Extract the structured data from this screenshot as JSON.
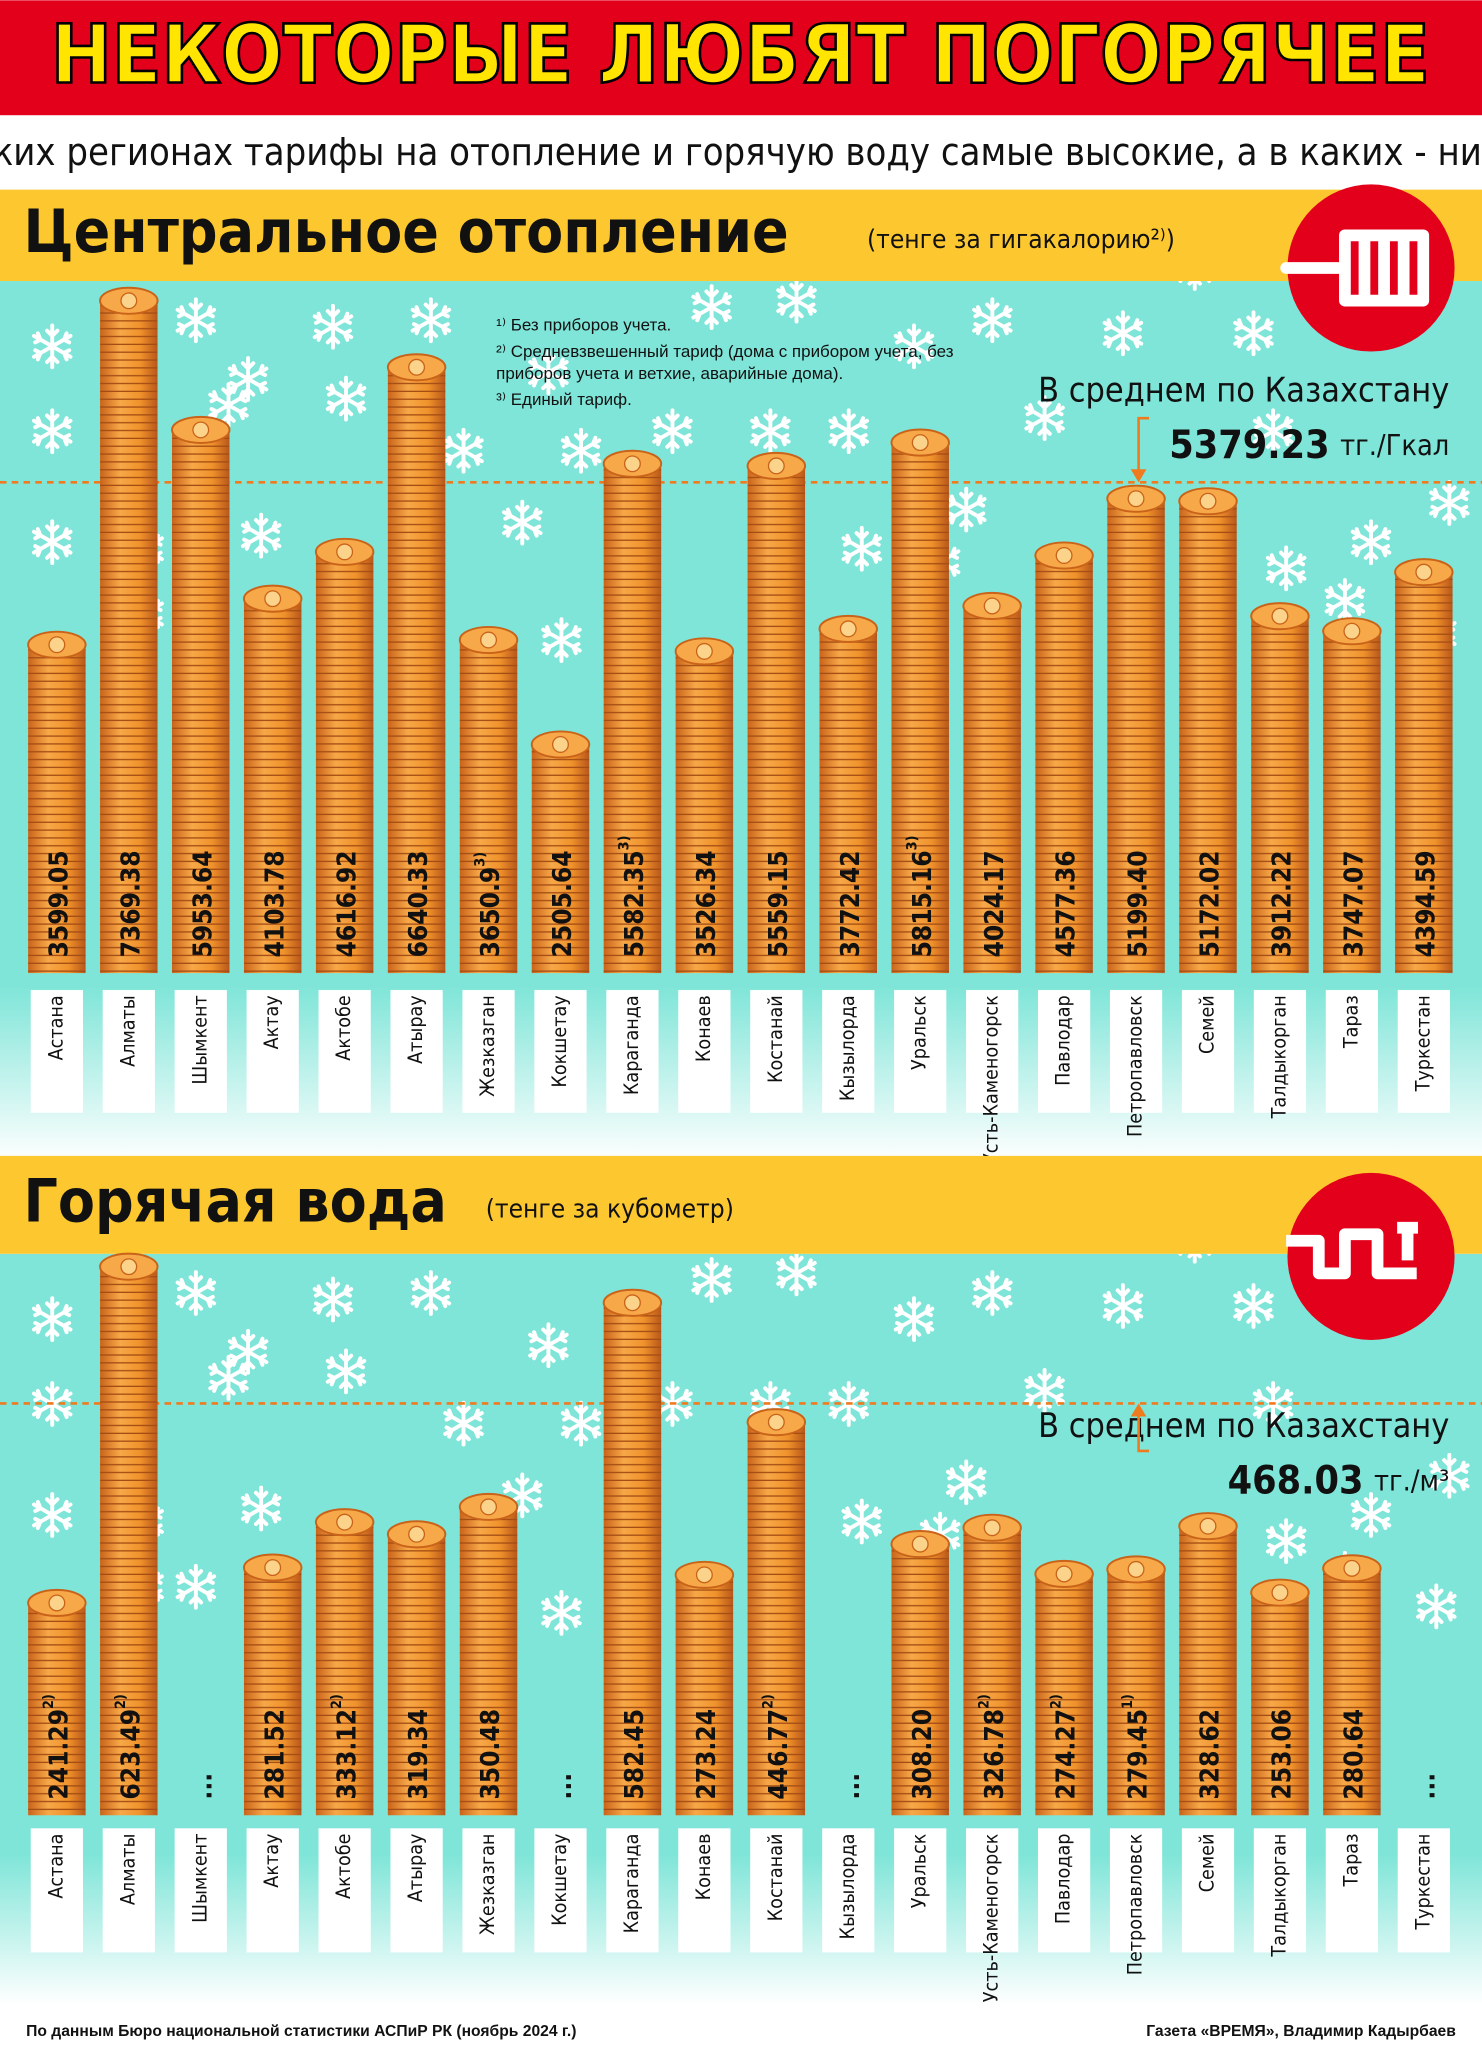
{
  "header": {
    "title": "НЕКОТОРЫЕ ЛЮБЯТ ПОГОРЯЧЕЕ",
    "subtitle": "В каких регионах тарифы на отопление и горячую воду самые высокие, а в каких - низкие"
  },
  "chart_data": [
    {
      "type": "bar",
      "title": "Центральное отопление",
      "unit": "(тенге за гигакалорию²⁾)",
      "color": "#f0922b",
      "notes": [
        "¹⁾ Без приборов учета.",
        "²⁾ Средневзвешенный тариф (дома с прибором учета, без приборов учета и ветхие, аварийные дома).",
        "³⁾ Единый тариф."
      ],
      "categories": [
        "Астана",
        "Алматы",
        "Шымкент",
        "Актау",
        "Актобе",
        "Атырау",
        "Жезказган",
        "Кокшетау",
        "Караганда",
        "Конаев",
        "Костанай",
        "Кызылорда",
        "Уральск",
        "Усть-Каменогорск",
        "Павлодар",
        "Петропавловск",
        "Семей",
        "Талдыкорган",
        "Тараз",
        "Туркестан"
      ],
      "values": [
        3599.05,
        7369.38,
        5953.64,
        4103.78,
        4616.92,
        6640.33,
        3650.9,
        2505.64,
        5582.35,
        3526.34,
        5559.15,
        3772.42,
        5815.16,
        4024.17,
        4577.36,
        5199.4,
        5172.02,
        3912.22,
        3747.07,
        4394.59
      ],
      "value_labels": [
        "3599.05",
        "7369.38",
        "5953.64",
        "4103.78",
        "4616.92",
        "6640.33",
        "3650.9",
        "2505.64",
        "5582.35",
        "3526.34",
        "5559.15",
        "3772.42",
        "5815.16",
        "4024.17",
        "4577.36",
        "5199.40",
        "5172.02",
        "3912.22",
        "3747.07",
        "4394.59"
      ],
      "footnotes": [
        null,
        null,
        null,
        null,
        null,
        null,
        "3)",
        null,
        "3)",
        null,
        null,
        null,
        "3)",
        null,
        null,
        null,
        null,
        null,
        null,
        null
      ],
      "ylim": [
        0,
        7600
      ],
      "average": {
        "label": "В среднем по Казахстану",
        "value": 5379.23,
        "unit": "тг./Гкал"
      }
    },
    {
      "type": "bar",
      "title": "Горячая вода",
      "unit": "(тенге за кубометр)",
      "color": "#f0922b",
      "categories": [
        "Астана",
        "Алматы",
        "Шымкент",
        "Актау",
        "Актобе",
        "Атырау",
        "Жезказган",
        "Кокшетау",
        "Караганда",
        "Конаев",
        "Костанай",
        "Кызылорда",
        "Уральск",
        "Усть-Каменогорск",
        "Павлодар",
        "Петропавловск",
        "Семей",
        "Талдыкорган",
        "Тараз",
        "Туркестан"
      ],
      "values": [
        241.29,
        623.49,
        null,
        281.52,
        333.12,
        319.34,
        350.48,
        null,
        582.45,
        273.24,
        446.77,
        null,
        308.2,
        326.78,
        274.27,
        279.45,
        328.62,
        253.06,
        280.64,
        null
      ],
      "value_labels": [
        "241.29",
        "623.49",
        "...",
        "281.52",
        "333.12",
        "319.34",
        "350.48",
        "...",
        "582.45",
        "273.24",
        "446.77",
        "...",
        "308.20",
        "326.78",
        "274.27",
        "279.45",
        "328.62",
        "253.06",
        "280.64",
        "..."
      ],
      "footnotes": [
        "2)",
        "2)",
        null,
        null,
        "2)",
        null,
        null,
        null,
        null,
        null,
        "2)",
        null,
        null,
        "2)",
        "2)",
        "1)",
        null,
        null,
        null,
        null
      ],
      "ylim": [
        0,
        650
      ],
      "average": {
        "label": "В среднем по Казахстану",
        "value": 468.03,
        "unit": "тг./м³"
      }
    }
  ],
  "footer": {
    "source": "По данным Бюро национальной статистики АСПиР РК (ноябрь 2024 г.)",
    "credit": "Газета «ВРЕМЯ», Владимир Кадырбаев"
  }
}
